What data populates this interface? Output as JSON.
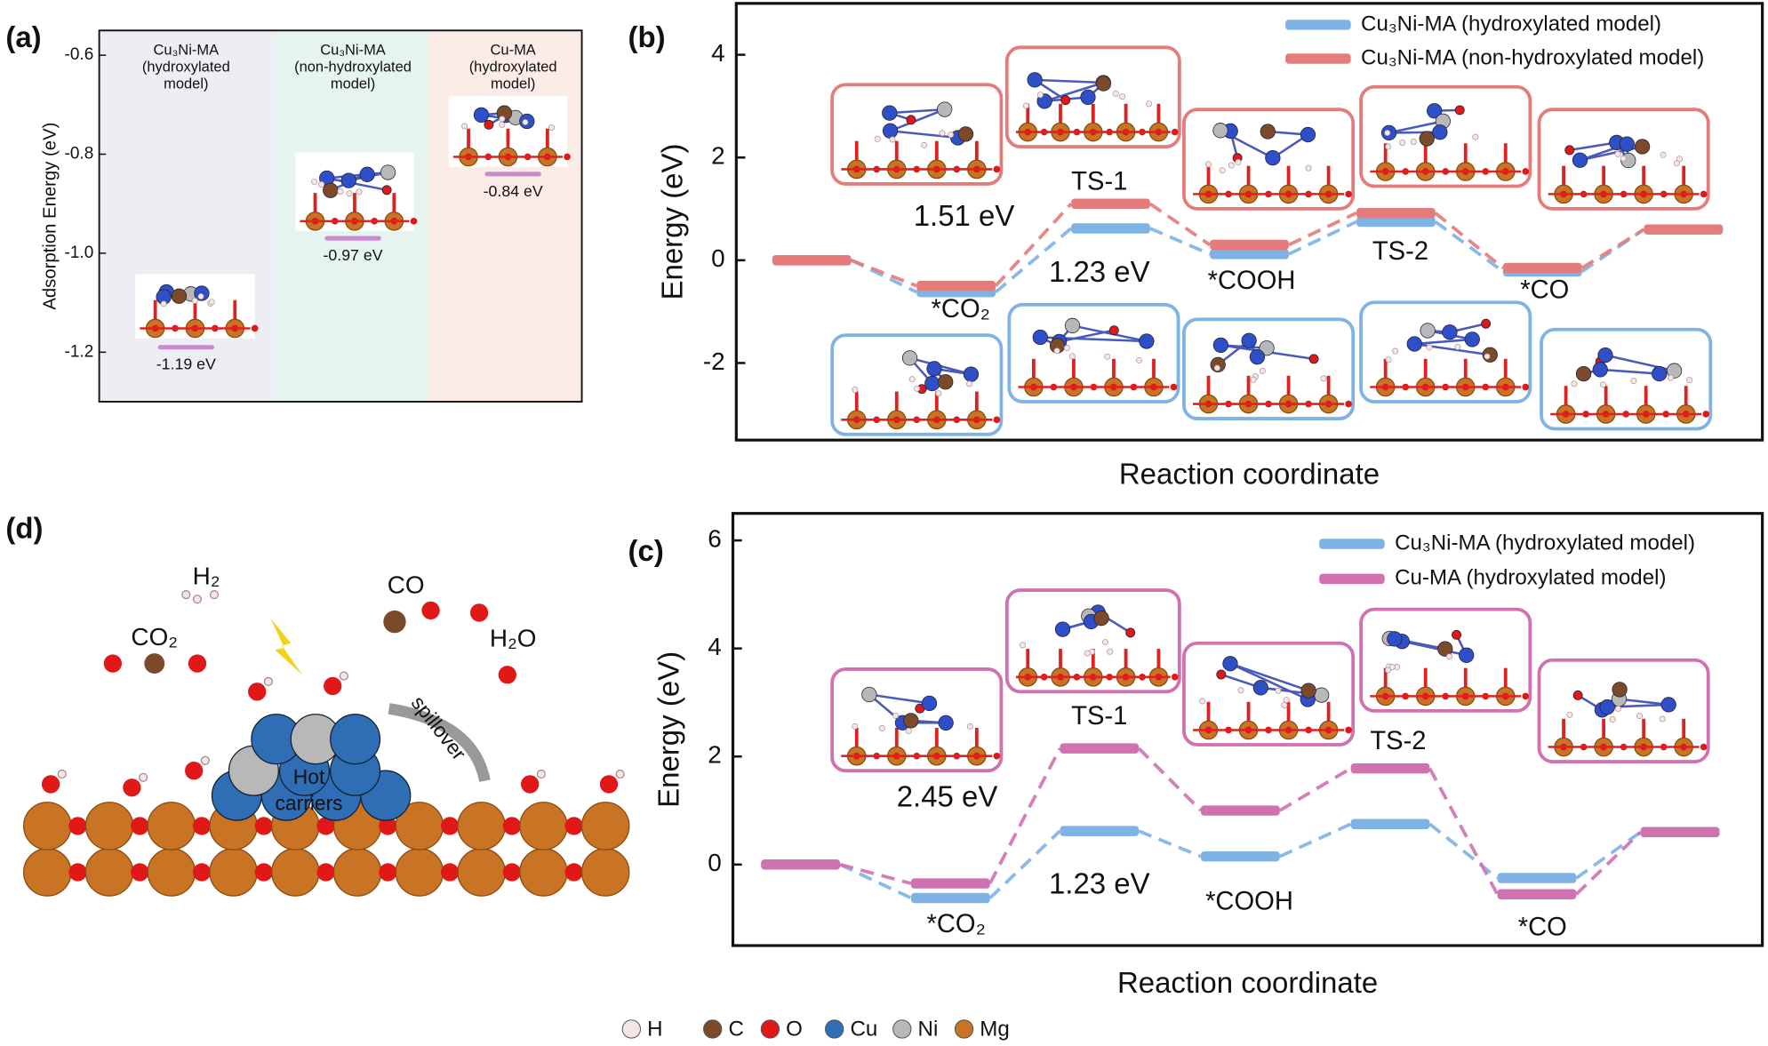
{
  "chart_data": [
    {
      "type": "bar",
      "panel_label": "(a)",
      "ylabel": "Adsorption Energy (eV)",
      "categories": [
        [
          "Cu₃Ni-MA",
          "(hydroxylated",
          "model)"
        ],
        [
          "Cu₃Ni-MA",
          "(non-hydroxylated",
          "model)"
        ],
        [
          "Cu-MA",
          "(hydroxylated",
          "model)"
        ]
      ],
      "values": [
        -1.19,
        -0.97,
        -0.84
      ],
      "value_labels": [
        "-1.19 eV",
        "-0.97 eV",
        "-0.84 eV"
      ],
      "color": "#c98bd0",
      "background_colors": [
        "#eceef4",
        "#e6f4ef",
        "#fbece8"
      ],
      "ylim": [
        -1.3,
        -0.55
      ],
      "yticks": [
        -0.6,
        -0.8,
        {
          "value": -1,
          "label": "-1.0"
        },
        -1.2
      ]
    },
    {
      "type": "energy",
      "panel_label": "(b)",
      "ylabel": "Energy (eV)",
      "xlabel": "Reaction coordinate",
      "categories": [
        null,
        "*CO₂",
        "TS-1",
        "*COOH",
        "TS-2",
        "*CO",
        null
      ],
      "series": [
        {
          "name": "Cu₃Ni-MA (hydroxylated model)",
          "color": "#7fb3e6",
          "values": [
            0,
            -0.62,
            0.62,
            0.12,
            0.75,
            -0.22,
            0.6
          ]
        },
        {
          "name": "Cu₃Ni-MA (non-hydroxylated model)",
          "color": "#e47c7c",
          "values": [
            0,
            -0.5,
            1.1,
            0.3,
            0.92,
            -0.15,
            0.6
          ]
        }
      ],
      "annotations": [
        "1.51 eV",
        "1.23 eV"
      ],
      "annotation_colors": [
        "#8a79bd",
        "#a9bd7c"
      ],
      "ylim": [
        -3.5,
        5
      ],
      "yticks": [
        -2,
        0,
        2,
        4
      ]
    },
    {
      "type": "energy",
      "panel_label": "(c)",
      "ylabel": "Energy (eV)",
      "xlabel": "Reaction coordinate",
      "categories": [
        null,
        "*CO₂",
        "TS-1",
        "*COOH",
        "TS-2",
        "*CO",
        null
      ],
      "series": [
        {
          "name": "Cu₃Ni-MA (hydroxylated model)",
          "color": "#7fb3e6",
          "values": [
            0,
            -0.62,
            0.62,
            0.15,
            0.75,
            -0.25,
            0.6
          ]
        },
        {
          "name": "Cu-MA (hydroxylated model)",
          "color": "#d072b0",
          "values": [
            0,
            -0.35,
            2.15,
            1.0,
            1.78,
            -0.55,
            0.6
          ]
        }
      ],
      "annotations": [
        "2.45 eV",
        "1.23 eV"
      ],
      "annotation_colors": [
        "#8a79bd",
        "#a9bd7c"
      ],
      "ylim": [
        -1.5,
        6.5
      ],
      "yticks": [
        0,
        2,
        4,
        6
      ]
    }
  ],
  "diagram": {
    "panel_label": "(d)",
    "labels": [
      "H₂",
      "CO₂",
      "CO",
      "H₂O",
      "Hot",
      "carriers",
      "spillover"
    ]
  },
  "element_legend": [
    {
      "label": "H",
      "color": "#f4e6e6"
    },
    {
      "label": "C",
      "color": "#7a4a2a"
    },
    {
      "label": "O",
      "color": "#e01818"
    },
    {
      "label": "Cu",
      "color": "#2f6db5"
    },
    {
      "label": "Ni",
      "color": "#b8b8b8"
    },
    {
      "label": "Mg",
      "color": "#c87424"
    }
  ]
}
